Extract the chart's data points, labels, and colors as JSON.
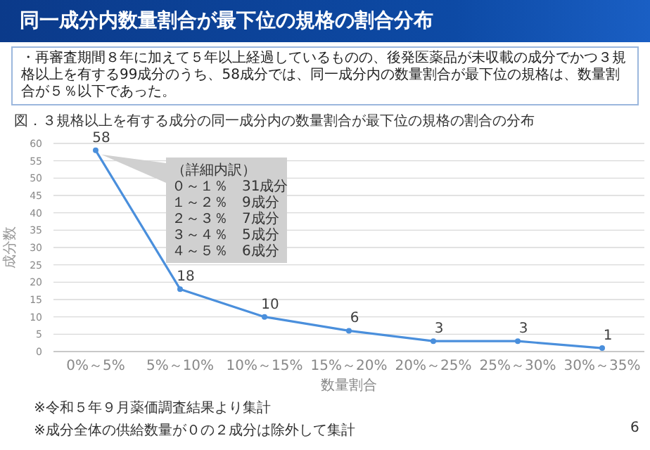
{
  "chart_data": {
    "type": "line",
    "title": "同一成分内数量割合が最下位の規格の割合分布",
    "xlabel": "数量割合",
    "ylabel": "成分数",
    "categories": [
      "0%～5%",
      "5%～10%",
      "10%～15%",
      "15%～20%",
      "20%～25%",
      "25%～30%",
      "30%～35%"
    ],
    "series": [
      {
        "color": "#4a8fdc",
        "values": [
          58,
          18,
          10,
          6,
          3,
          3,
          1
        ]
      }
    ],
    "ylim": [
      0,
      60
    ],
    "yticks": [
      0,
      5,
      10,
      15,
      20,
      25,
      30,
      35,
      40,
      45,
      50,
      55,
      60
    ],
    "grid": "y",
    "marker": "circle",
    "line_style": "solid",
    "data_labels": true,
    "annotations": [
      "・再審査期間８年に加えて５年以上経過しているものの、後発医薬品が未収載の成分でかつ３規格以上を有する99成分のうち、58成分では、同一成分内の数量割合が最下位の規格は、数量割合が５％以下であった。",
      "図．３規格以上を有する成分の同一成分内の数量割合が最下位の規格の割合の分布",
      "（詳細内訳）",
      "０～１％　31成分",
      "１～２％　9成分",
      "２～３％　7成分",
      "３～４％　5成分",
      "４～５％　6成分",
      "※令和５年９月薬価調査結果より集計",
      "※成分全体の供給数量が０の２成分は除外して集計",
      "6"
    ]
  }
}
